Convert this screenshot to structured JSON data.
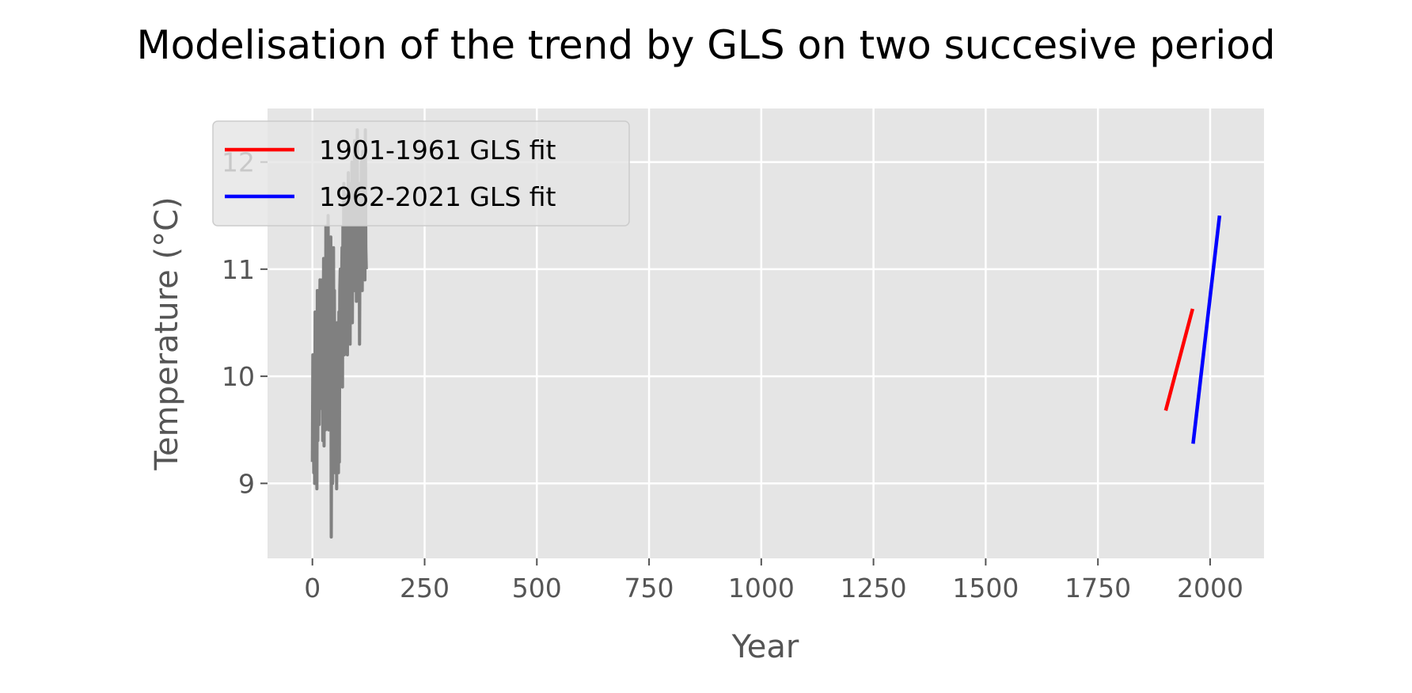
{
  "chart_data": {
    "type": "line",
    "title": "Modelisation of the trend by GLS on two succesive period",
    "xlabel": "Year",
    "ylabel": "Temperature (°C)",
    "xlim": [
      -100,
      2120
    ],
    "ylim": [
      8.3,
      12.5
    ],
    "x_ticks": [
      0,
      250,
      500,
      750,
      1000,
      1250,
      1500,
      1750,
      2000
    ],
    "x_tick_labels": [
      "0",
      "250",
      "500",
      "750",
      "1000",
      "1250",
      "1500",
      "1750",
      "2000"
    ],
    "y_ticks": [
      9,
      10,
      11,
      12
    ],
    "y_tick_labels": [
      "9",
      "10",
      "11",
      "12"
    ],
    "grid": true,
    "legend_position": "upper-left",
    "series": [
      {
        "color": "#808080",
        "x": [
          0,
          1,
          2,
          3,
          4,
          5,
          6,
          7,
          8,
          9,
          10,
          11,
          12,
          13,
          14,
          15,
          16,
          17,
          18,
          19,
          20,
          21,
          22,
          23,
          24,
          25,
          26,
          27,
          28,
          29,
          30,
          31,
          32,
          33,
          34,
          35,
          36,
          37,
          38,
          39,
          40,
          41,
          42,
          43,
          44,
          45,
          46,
          47,
          48,
          49,
          50,
          51,
          52,
          53,
          54,
          55,
          56,
          57,
          58,
          59,
          60,
          61,
          62,
          63,
          64,
          65,
          66,
          67,
          68,
          69,
          70,
          71,
          72,
          73,
          74,
          75,
          76,
          77,
          78,
          79,
          80,
          81,
          82,
          83,
          84,
          85,
          86,
          87,
          88,
          89,
          90,
          91,
          92,
          93,
          94,
          95,
          96,
          97,
          98,
          99,
          100,
          101,
          102,
          103,
          104,
          105,
          106,
          107,
          108,
          109,
          110,
          111,
          112,
          113,
          114,
          115,
          116,
          117,
          118,
          119,
          120
        ],
        "values": [
          9.2,
          10.2,
          9.6,
          9.1,
          10.0,
          9.0,
          10.6,
          9.5,
          9.0,
          10.5,
          8.95,
          10.8,
          9.4,
          10.3,
          10.7,
          9.55,
          10.5,
          10.9,
          9.7,
          10.2,
          10.8,
          9.7,
          10.9,
          9.4,
          10.4,
          11.1,
          9.35,
          10.6,
          11.0,
          9.5,
          11.4,
          10.3,
          11.2,
          9.6,
          10.7,
          11.5,
          9.5,
          10.6,
          11.1,
          9.5,
          10.4,
          11.3,
          8.5,
          9.8,
          10.9,
          9.0,
          10.0,
          11.2,
          9.7,
          10.8,
          9.1,
          10.4,
          9.5,
          10.3,
          8.95,
          10.5,
          9.8,
          10.3,
          9.1,
          10.6,
          9.2,
          10.8,
          11.0,
          10.4,
          10.1,
          10.8,
          11.2,
          9.9,
          11.4,
          10.6,
          11.8,
          10.2,
          11.0,
          11.6,
          10.3,
          11.2,
          10.9,
          11.7,
          10.2,
          11.3,
          11.9,
          10.6,
          11.1,
          11.5,
          10.3,
          11.8,
          11.2,
          11.0,
          12.0,
          10.5,
          11.4,
          11.0,
          11.8,
          10.8,
          12.2,
          11.3,
          11.1,
          11.9,
          10.7,
          11.6,
          12.3,
          10.9,
          11.5,
          11.1,
          11.8,
          10.3,
          11.2,
          11.7,
          10.9,
          12.0,
          11.4,
          10.8,
          12.1,
          11.3,
          11.0,
          11.9,
          11.5,
          10.9,
          12.3,
          11.2,
          11.0
        ]
      },
      {
        "name": "1901-1961 GLS fit",
        "color": "#ff0000",
        "x": [
          1901,
          1961
        ],
        "values": [
          9.68,
          10.63
        ]
      },
      {
        "name": "1962-2021 GLS fit",
        "color": "#0000ff",
        "x": [
          1962,
          2021
        ],
        "values": [
          9.37,
          11.5
        ]
      }
    ]
  }
}
